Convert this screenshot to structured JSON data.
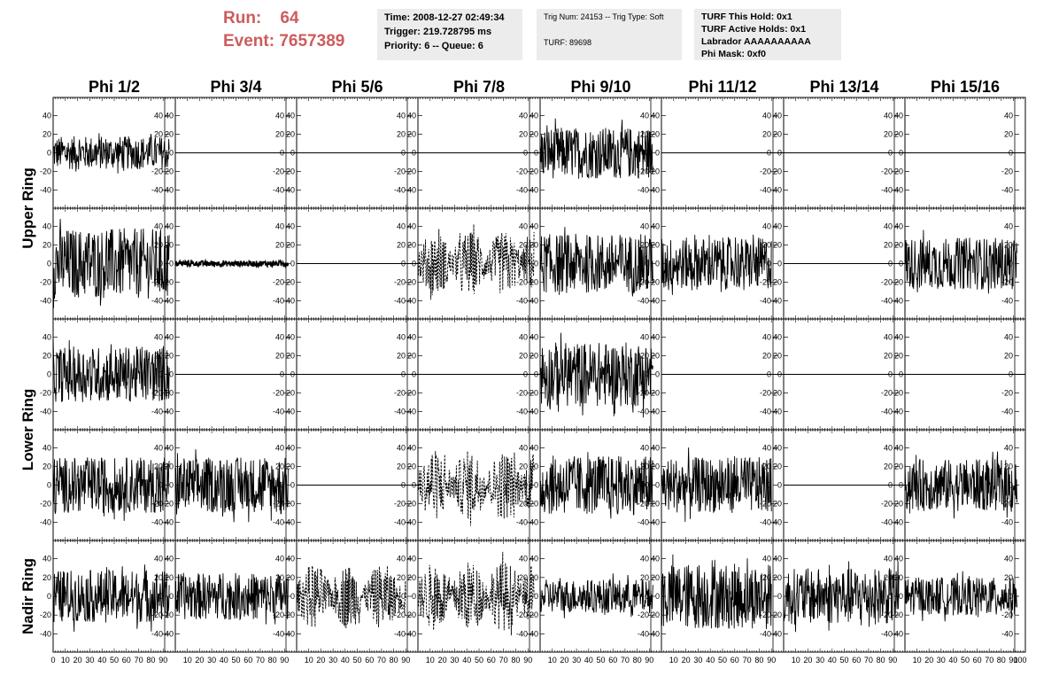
{
  "header": {
    "run_label": "Run:",
    "run_value": "64",
    "event_label": "Event:",
    "event_value": "7657389"
  },
  "info_time": {
    "time": "Time: 2008-12-27 02:49:34",
    "trigger": "Trigger: 219.728795 ms",
    "priority": "Priority: 6 -- Queue: 6"
  },
  "info_trig": {
    "trig": "Trig Num: 24153 -- Trig Type: Soft",
    "turf": "TURF: 89698"
  },
  "info_turf": {
    "hold": "TURF This Hold: 0x1",
    "active": "TURF Active Holds: 0x1",
    "labrador": "Labrador AAAAAAAAAA",
    "phimask": "Phi Mask: 0xf0"
  },
  "colors": {
    "header_red": "#cd5c5c",
    "panel_bg": "#ececec",
    "trace": "#000000"
  },
  "chart_data": {
    "type": "line",
    "columns": [
      "Phi 1/2",
      "Phi 3/4",
      "Phi 5/6",
      "Phi 7/8",
      "Phi 9/10",
      "Phi 11/12",
      "Phi 13/14",
      "Phi 15/16"
    ],
    "rows": [
      "Upper Ring",
      "Upper Ring",
      "Lower Ring",
      "Lower Ring",
      "Nadir Ring"
    ],
    "row_labels": [
      "Upper Ring",
      "Lower Ring",
      "Nadir Ring"
    ],
    "xlim": [
      0,
      100
    ],
    "ylim": [
      -50,
      50
    ],
    "yticks": [
      "40",
      "20",
      "0",
      "-20",
      "-40"
    ],
    "xticks": [
      "0",
      "10",
      "20",
      "30",
      "40",
      "50",
      "60",
      "70",
      "80",
      "90",
      "100"
    ],
    "trace_kind": [
      [
        "noise",
        "flat",
        "flat",
        "flat",
        "noise",
        "flat",
        "flat",
        "flat"
      ],
      [
        "noise",
        "small",
        "flat",
        "dashed",
        "noise",
        "noise",
        "flat",
        "noise"
      ],
      [
        "noise",
        "flat",
        "flat",
        "flat",
        "noise",
        "flat",
        "flat",
        "flat"
      ],
      [
        "noise",
        "noise",
        "flat",
        "dashed",
        "noise",
        "noise",
        "flat",
        "noise"
      ],
      [
        "noise",
        "noise",
        "dashed",
        "dashed",
        "noise",
        "noise",
        "noise",
        "noise"
      ]
    ],
    "trace_amplitude": [
      [
        18,
        0,
        0,
        0,
        28,
        0,
        0,
        0
      ],
      [
        38,
        3,
        0,
        35,
        32,
        28,
        0,
        28
      ],
      [
        30,
        0,
        0,
        0,
        35,
        0,
        0,
        0
      ],
      [
        30,
        30,
        0,
        38,
        32,
        30,
        0,
        28
      ],
      [
        28,
        25,
        35,
        38,
        18,
        35,
        30,
        20
      ]
    ],
    "trace_extent": [
      95,
      93,
      90
    ]
  }
}
